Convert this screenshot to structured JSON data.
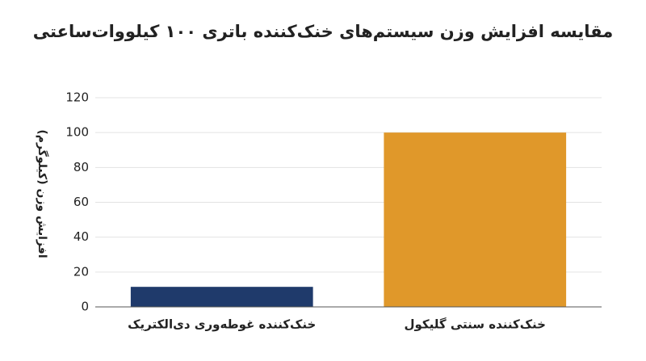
{
  "chart_data": {
    "type": "bar",
    "title": "مقایسه افزایش وزن سیستم‌های خنک‌کننده باتری ۱۰۰ کیلووات‌ساعتی",
    "y_label": "افزایش وزن (کیلوگرم)",
    "categories": [
      "خنک‌کننده غوطه‌وری دی‌الکتریک",
      "خنک‌کننده سنتی گلیکول"
    ],
    "values": [
      11.5,
      100
    ],
    "colors": [
      "#1f3a6b",
      "#e0982a"
    ],
    "ylim": [
      0,
      120
    ],
    "yticks": [
      0,
      20,
      40,
      60,
      80,
      100,
      120
    ],
    "grid": true
  }
}
